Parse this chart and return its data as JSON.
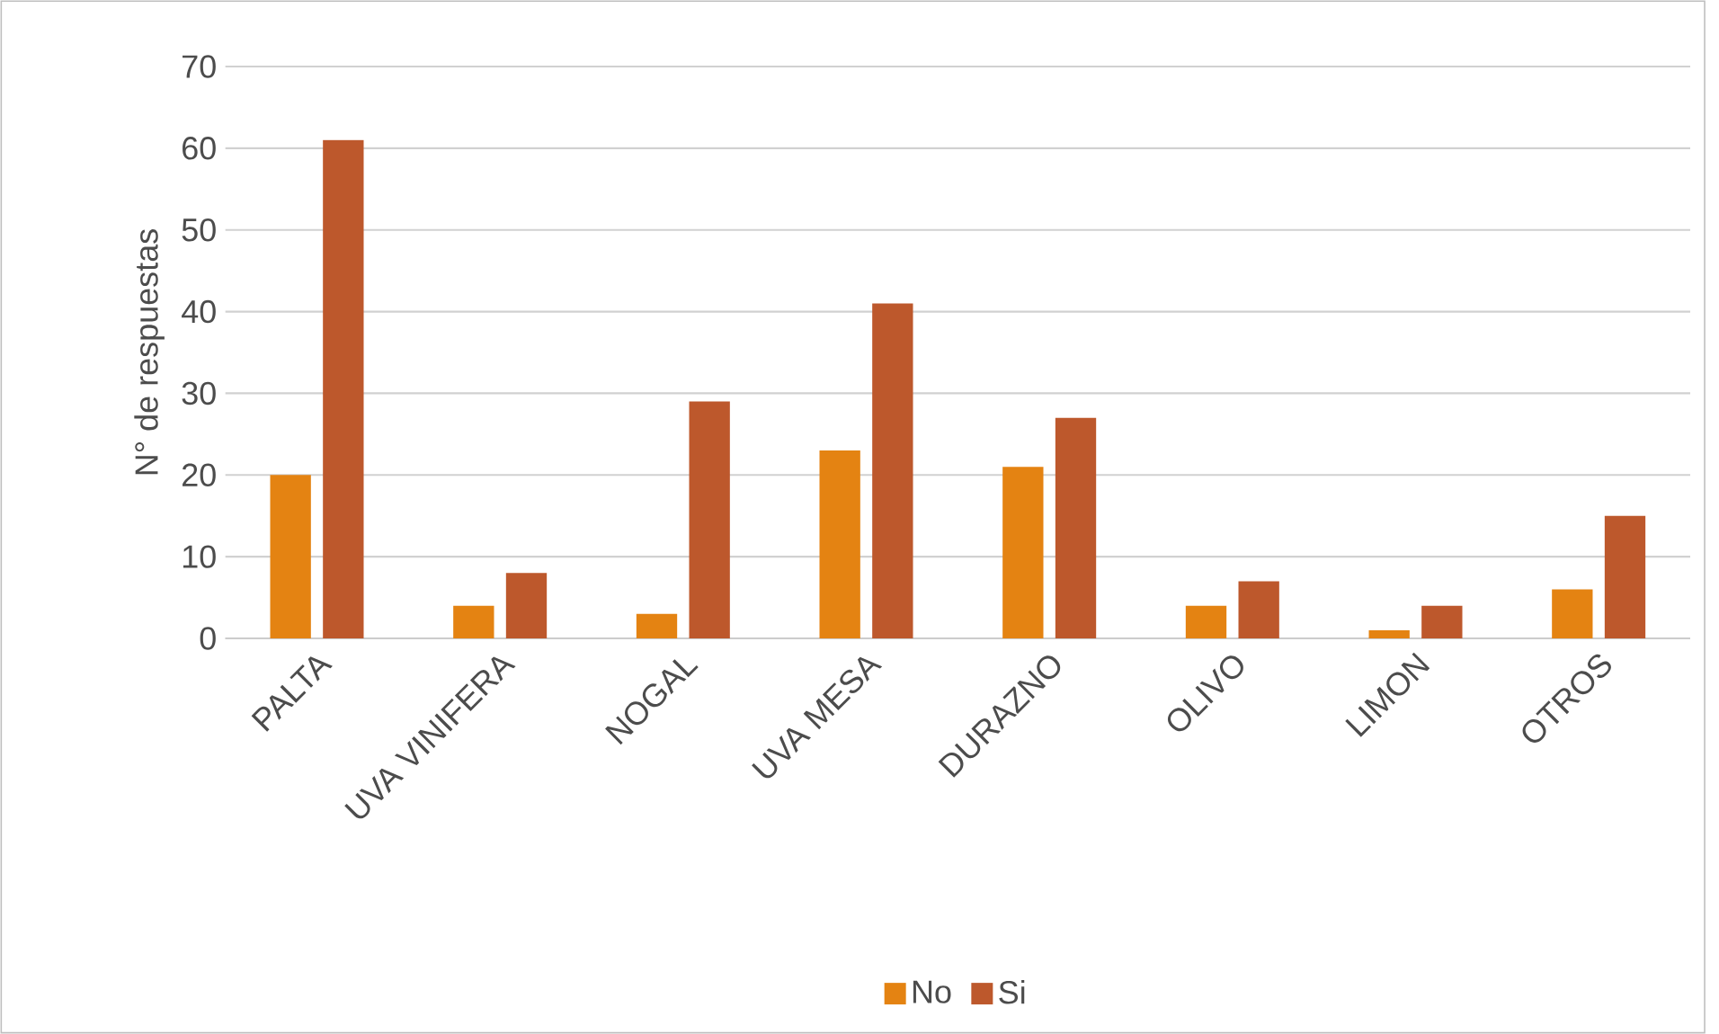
{
  "chart_data": {
    "type": "bar",
    "ylabel": "N° de respuestas",
    "categories": [
      "PALTA",
      "UVA VINIFERA",
      "NOGAL",
      "UVA MESA",
      "DURAZNO",
      "OLIVO",
      "LIMON",
      "OTROS"
    ],
    "series": [
      {
        "name": "No",
        "color": "#e48312",
        "values": [
          20,
          4,
          3,
          23,
          21,
          4,
          1,
          6
        ]
      },
      {
        "name": "Si",
        "color": "#bd582c",
        "values": [
          61,
          8,
          29,
          41,
          27,
          7,
          4,
          15
        ]
      }
    ],
    "ylim": [
      0,
      70
    ],
    "yticks": [
      0,
      10,
      20,
      30,
      40,
      50,
      60,
      70
    ],
    "grid": "y",
    "legend": "bottom"
  }
}
